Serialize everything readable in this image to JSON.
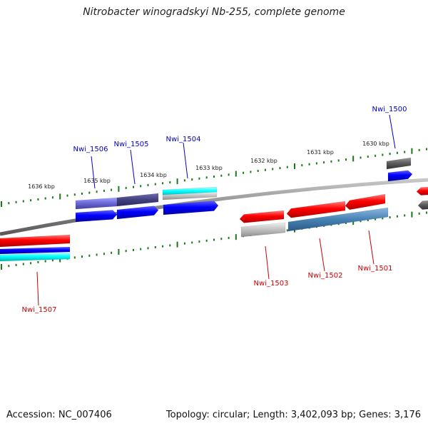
{
  "title": "Nitrobacter winogradskyi Nb-255, complete genome",
  "footer": {
    "accession": "Accession: NC_007406",
    "summary": "Topology: circular; Length: 3,402,093 bp; Genes: 3,176"
  },
  "colors": {
    "forward_label": "#0000cc",
    "reverse_label": "#cc0000",
    "tick": "#1a7a1a",
    "backbone": "#808080"
  },
  "scale_labels": [
    "1636 kbp",
    "1635 kbp",
    "1634 kbp",
    "1633 kbp",
    "1632 kbp",
    "1631 kbp",
    "1630 kbp"
  ],
  "gene_labels": [
    {
      "name": "Nwi_1506",
      "strand": "forward"
    },
    {
      "name": "Nwi_1505",
      "strand": "forward"
    },
    {
      "name": "Nwi_1504",
      "strand": "forward"
    },
    {
      "name": "Nwi_1500",
      "strand": "forward"
    },
    {
      "name": "Nwi_1503",
      "strand": "reverse"
    },
    {
      "name": "Nwi_1502",
      "strand": "reverse"
    },
    {
      "name": "Nwi_1501",
      "strand": "reverse"
    },
    {
      "name": "Nwi_1507",
      "strand": "reverse"
    }
  ]
}
